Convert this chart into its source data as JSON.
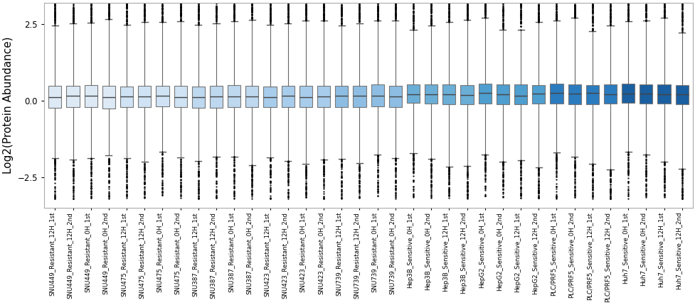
{
  "labels": [
    "SNU449_Resistant_12H_1st",
    "SNU449_Resistant_12H_2nd",
    "SNU449_Resistant_0H_1st",
    "SNU449_Resistant_0H_2nd",
    "SNU475_Resistant_12H_1st",
    "SNU475_Resistant_12H_2nd",
    "SNU475_Resistant_0H_1st",
    "SNU475_Resistant_0H_2nd",
    "SNU387_Resistant_12H_1st",
    "SNU387_Resistant_12H_2nd",
    "SNU387_Resistant_0H_1st",
    "SNU387_Resistant_0H_2nd",
    "SNU423_Resistant_12H_1st",
    "SNU423_Resistant_12H_2nd",
    "SNU423_Resistant_0H_1st",
    "SNU423_Resistant_0H_2nd",
    "SNU739_Resistant_12H_1st",
    "SNU739_Resistant_12H_2nd",
    "SNU739_Resistant_0H_1st",
    "SNU739_Resistant_0H_2nd",
    "Hep3B_Sensitive_0H_1st",
    "Hep3B_Sensitive_0H_2nd",
    "Hep3B_Sensitive_12H_1st",
    "Hep3B_Sensitive_12H_2nd",
    "HepG2_Sensitive_0H_1st",
    "HepG2_Sensitive_0H_2nd",
    "HepG2_Sensitive_12H_1st",
    "HepG2_Sensitive_12H_2nd",
    "PLC/PRF5_Sensitive_0H_1st",
    "PLC/PRF5_Sensitive_0H_2nd",
    "PLC/PRF5_Sensitive_12H_1st",
    "PLC/PRF5_Sensitive_12H_2nd",
    "Huh7_Sensitive_0H_1st",
    "Huh7_Sensitive_0H_2nd",
    "Huh7_Sensitive_12H_1st",
    "Huh7_Sensitive_12H_2nd"
  ],
  "colors": [
    "#ddeaf6",
    "#ddeaf6",
    "#ddeaf6",
    "#ddeaf6",
    "#cfe3f4",
    "#cfe3f4",
    "#cfe3f4",
    "#cfe3f4",
    "#bdd8ef",
    "#bdd8ef",
    "#bdd8ef",
    "#bdd8ef",
    "#a8cceb",
    "#a8cceb",
    "#a8cceb",
    "#a8cceb",
    "#8dbde3",
    "#8dbde3",
    "#8dbde3",
    "#8dbde3",
    "#6baed6",
    "#6baed6",
    "#6baed6",
    "#6baed6",
    "#4e9ecf",
    "#4e9ecf",
    "#4e9ecf",
    "#4e9ecf",
    "#2b7bbf",
    "#2b7bbf",
    "#2b7bbf",
    "#2b7bbf",
    "#1a5fa0",
    "#1a5fa0",
    "#1a5fa0",
    "#1a5fa0"
  ],
  "ylabel": "Log2(Protein Abundance)",
  "ylim": [
    -3.5,
    3.2
  ],
  "whisker_lo": -2.5,
  "whisker_hi": 2.5,
  "q1_resistant": -0.38,
  "q3_resistant": 0.62,
  "median_resistant": 0.02,
  "q1_sensitive": -0.25,
  "q3_sensitive": 0.65,
  "median_sensitive": 0.05,
  "n_resistant": 20,
  "n_sensitive": 16,
  "background_color": "#ffffff",
  "tick_fontsize": 6.2,
  "label_fontsize": 10,
  "yticks": [
    -2.5,
    0.0,
    2.5
  ],
  "ylabel_fontsize": 11
}
